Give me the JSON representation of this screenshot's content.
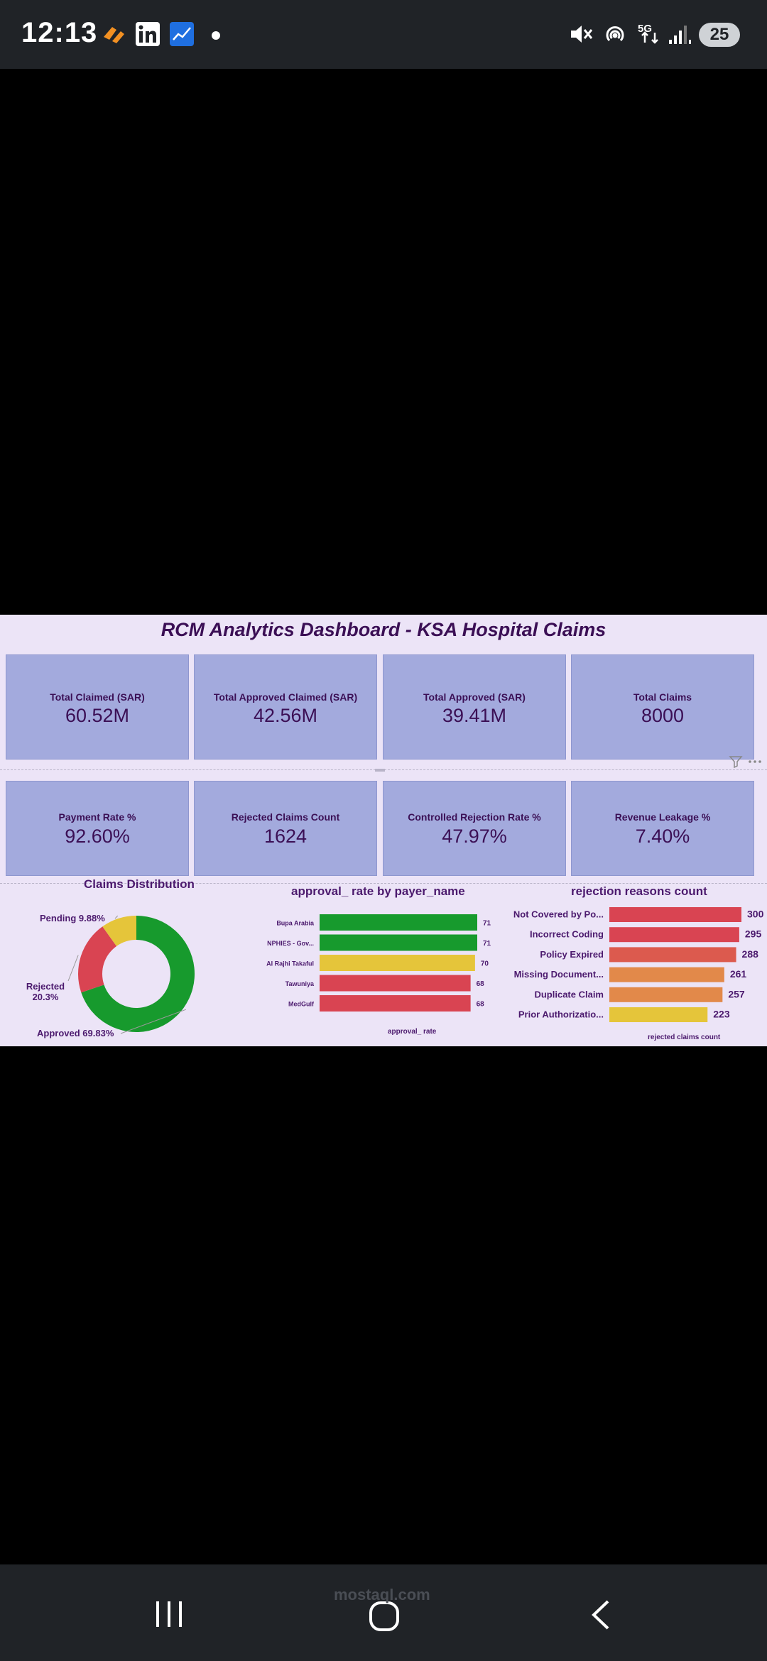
{
  "status_bar": {
    "time": "12:13",
    "battery": "25",
    "network": "5G",
    "left_icons": [
      "swirl-app-icon",
      "linkedin-icon",
      "chart-app-icon",
      "dot-icon"
    ],
    "right_icons": [
      "mute-icon",
      "hotspot-icon",
      "5g-icon",
      "signal-icon",
      "battery-icon"
    ]
  },
  "dashboard": {
    "title": "RCM  Analytics Dashboard - KSA Hospital Claims",
    "kpis_row1": [
      {
        "label": "Total Claimed (SAR)",
        "value": "60.52M"
      },
      {
        "label": "Total Approved Claimed (SAR)",
        "value": "42.56M"
      },
      {
        "label": "Total Approved (SAR)",
        "value": "39.41M"
      },
      {
        "label": "Total Claims",
        "value": "8000"
      }
    ],
    "kpis_row2": [
      {
        "label": "Payment Rate %",
        "value": "92.60%"
      },
      {
        "label": "Rejected Claims Count",
        "value": "1624"
      },
      {
        "label": "Controlled Rejection Rate %",
        "value": "47.97%"
      },
      {
        "label": "Revenue Leakage %",
        "value": "7.40%"
      }
    ],
    "colors": {
      "green": "#179a2d",
      "red": "#d94452",
      "yellow": "#e5c53a",
      "orange": "#e2894a",
      "card": "#a3aadd"
    }
  },
  "chart_data": [
    {
      "type": "pie",
      "title": "Claims Distribution",
      "labels": [
        "Approved",
        "Rejected",
        "Pending"
      ],
      "values": [
        69.83,
        20.3,
        9.88
      ],
      "display_labels": [
        "Approved 69.83%",
        "Rejected\n20.3%",
        "Pending 9.88%"
      ],
      "colors": [
        "#179a2d",
        "#d94452",
        "#e5c53a"
      ]
    },
    {
      "type": "bar",
      "title": "approval_ rate by payer_name",
      "categories": [
        "Bupa Arabia",
        "NPHIES - Gov...",
        "Al Rajhi Takaful",
        "Tawuniya",
        "MedGulf"
      ],
      "values": [
        71,
        71,
        70,
        68,
        68
      ],
      "colors": [
        "#179a2d",
        "#179a2d",
        "#e5c53a",
        "#d94452",
        "#d94452"
      ],
      "xlabel": "approval_ rate"
    },
    {
      "type": "bar",
      "title": "rejection reasons count",
      "categories": [
        "Not Covered by Po...",
        "Incorrect Coding",
        "Policy Expired",
        "Missing Document...",
        "Duplicate Claim",
        "Prior Authorizatio..."
      ],
      "values": [
        300,
        295,
        288,
        261,
        257,
        223
      ],
      "colors": [
        "#d94452",
        "#d94452",
        "#dc5a4e",
        "#e2894a",
        "#e2894a",
        "#e5c53a"
      ],
      "xlabel": "rejected claims count"
    }
  ],
  "watermark": "mostaql.com"
}
